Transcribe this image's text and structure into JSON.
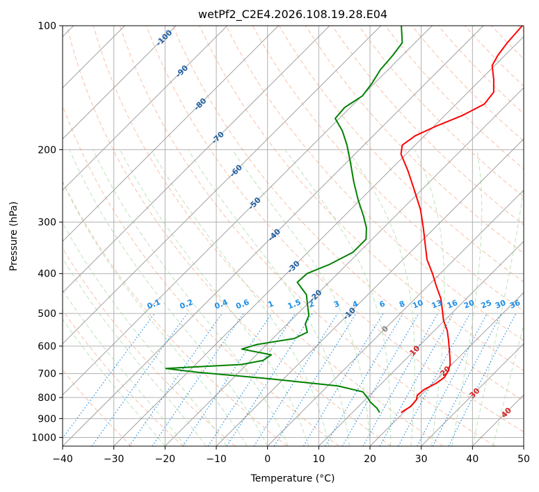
{
  "chart_data": {
    "type": "line",
    "subtype": "skew-T log-P diagram",
    "title": "wetPf2_C2E4.2026.108.19.28.E04",
    "xlabel": "Temperature (°C)",
    "ylabel": "Pressure (hPa)",
    "xlim": [
      -40,
      50
    ],
    "ylim": [
      1050,
      100
    ],
    "x_ticks": [
      -40,
      -30,
      -20,
      -10,
      0,
      10,
      20,
      30,
      40,
      50
    ],
    "y_ticks": [
      1000,
      900,
      800,
      700,
      600,
      500,
      400,
      300,
      200,
      100
    ],
    "grid": true,
    "colors": {
      "temperature": "#ff0000",
      "dewpoint": "#008000",
      "isotherm": "#a0a0a0",
      "grid": "#b0b0b0",
      "dry_adiabat": "#f4a582",
      "moist_adiabat": "#a6d9a0",
      "mixing_ratio": "#1f8ee6",
      "isotherm_label": "#1f5fa0",
      "warm_label": "#d62020",
      "zero_label": "#808080",
      "mixing_label": "#1f8ee6",
      "frame": "#000000"
    },
    "series": [
      {
        "name": "Temperature",
        "points": [
          {
            "p": 870,
            "t": 19.5
          },
          {
            "p": 840,
            "t": 20.2
          },
          {
            "p": 810,
            "t": 20.0
          },
          {
            "p": 790,
            "t": 19.3
          },
          {
            "p": 765,
            "t": 19.5
          },
          {
            "p": 740,
            "t": 20.6
          },
          {
            "p": 715,
            "t": 21.1
          },
          {
            "p": 690,
            "t": 20.6
          },
          {
            "p": 665,
            "t": 19.7
          },
          {
            "p": 640,
            "t": 18.3
          },
          {
            "p": 610,
            "t": 16.5
          },
          {
            "p": 580,
            "t": 14.6
          },
          {
            "p": 550,
            "t": 12.5
          },
          {
            "p": 520,
            "t": 9.8
          },
          {
            "p": 490,
            "t": 7.5
          },
          {
            "p": 460,
            "t": 5.0
          },
          {
            "p": 430,
            "t": 1.8
          },
          {
            "p": 400,
            "t": -1.5
          },
          {
            "p": 370,
            "t": -5.3
          },
          {
            "p": 340,
            "t": -8.6
          },
          {
            "p": 310,
            "t": -12.2
          },
          {
            "p": 280,
            "t": -16.3
          },
          {
            "p": 250,
            "t": -21.5
          },
          {
            "p": 225,
            "t": -26.4
          },
          {
            "p": 205,
            "t": -31.0
          },
          {
            "p": 195,
            "t": -32.5
          },
          {
            "p": 185,
            "t": -31.8
          },
          {
            "p": 175,
            "t": -29.5
          },
          {
            "p": 165,
            "t": -26.5
          },
          {
            "p": 155,
            "t": -24.5
          },
          {
            "p": 145,
            "t": -25.0
          },
          {
            "p": 135,
            "t": -27.5
          },
          {
            "p": 125,
            "t": -30.5
          },
          {
            "p": 118,
            "t": -31.4
          },
          {
            "p": 110,
            "t": -32.0
          },
          {
            "p": 100,
            "t": -32.4
          }
        ]
      },
      {
        "name": "Dewpoint",
        "points": [
          {
            "p": 870,
            "t": 15.3
          },
          {
            "p": 850,
            "t": 14.0
          },
          {
            "p": 820,
            "t": 11.4
          },
          {
            "p": 800,
            "t": 10.0
          },
          {
            "p": 775,
            "t": 8.0
          },
          {
            "p": 750,
            "t": 2.0
          },
          {
            "p": 720,
            "t": -13.0
          },
          {
            "p": 695,
            "t": -28.0
          },
          {
            "p": 680,
            "t": -35.0
          },
          {
            "p": 665,
            "t": -21.0
          },
          {
            "p": 650,
            "t": -17.6
          },
          {
            "p": 630,
            "t": -17.1
          },
          {
            "p": 610,
            "t": -24.0
          },
          {
            "p": 595,
            "t": -22.0
          },
          {
            "p": 575,
            "t": -15.8
          },
          {
            "p": 555,
            "t": -14.5
          },
          {
            "p": 530,
            "t": -16.5
          },
          {
            "p": 505,
            "t": -17.5
          },
          {
            "p": 480,
            "t": -19.5
          },
          {
            "p": 450,
            "t": -22.0
          },
          {
            "p": 420,
            "t": -26.2
          },
          {
            "p": 400,
            "t": -26.0
          },
          {
            "p": 380,
            "t": -23.4
          },
          {
            "p": 355,
            "t": -21.2
          },
          {
            "p": 330,
            "t": -21.2
          },
          {
            "p": 310,
            "t": -23.3
          },
          {
            "p": 290,
            "t": -26.2
          },
          {
            "p": 265,
            "t": -30.4
          },
          {
            "p": 240,
            "t": -34.7
          },
          {
            "p": 215,
            "t": -39.2
          },
          {
            "p": 195,
            "t": -43.3
          },
          {
            "p": 180,
            "t": -47.0
          },
          {
            "p": 168,
            "t": -50.8
          },
          {
            "p": 158,
            "t": -51.1
          },
          {
            "p": 148,
            "t": -49.9
          },
          {
            "p": 138,
            "t": -50.5
          },
          {
            "p": 128,
            "t": -51.5
          },
          {
            "p": 118,
            "t": -51.9
          },
          {
            "p": 110,
            "t": -52.5
          },
          {
            "p": 100,
            "t": -56.0
          }
        ]
      }
    ],
    "isotherm_labels": [
      {
        "text": "-100",
        "t": -100
      },
      {
        "text": "-90",
        "t": -90
      },
      {
        "text": "-80",
        "t": -80
      },
      {
        "text": "-70",
        "t": -70
      },
      {
        "text": "-60",
        "t": -60
      },
      {
        "text": "-50",
        "t": -50
      },
      {
        "text": "-40",
        "t": -40
      },
      {
        "text": "-30",
        "t": -30
      },
      {
        "text": "-20",
        "t": -20
      },
      {
        "text": "-10",
        "t": -10
      },
      {
        "text": "0",
        "t": 0
      },
      {
        "text": "10",
        "t": 10
      },
      {
        "text": "20",
        "t": 20
      },
      {
        "text": "30",
        "t": 30
      },
      {
        "text": "40",
        "t": 40
      }
    ],
    "mixing_ratio_labels": [
      "0.1",
      "0.2",
      "0.4",
      "0.6",
      "1",
      "1.5",
      "2",
      "3",
      "4",
      "6",
      "8",
      "10",
      "13",
      "16",
      "20",
      "25",
      "30",
      "36"
    ],
    "mixing_ratio_values": [
      0.1,
      0.2,
      0.4,
      0.6,
      1,
      1.5,
      2,
      3,
      4,
      6,
      8,
      10,
      13,
      16,
      20,
      25,
      30,
      36
    ]
  }
}
